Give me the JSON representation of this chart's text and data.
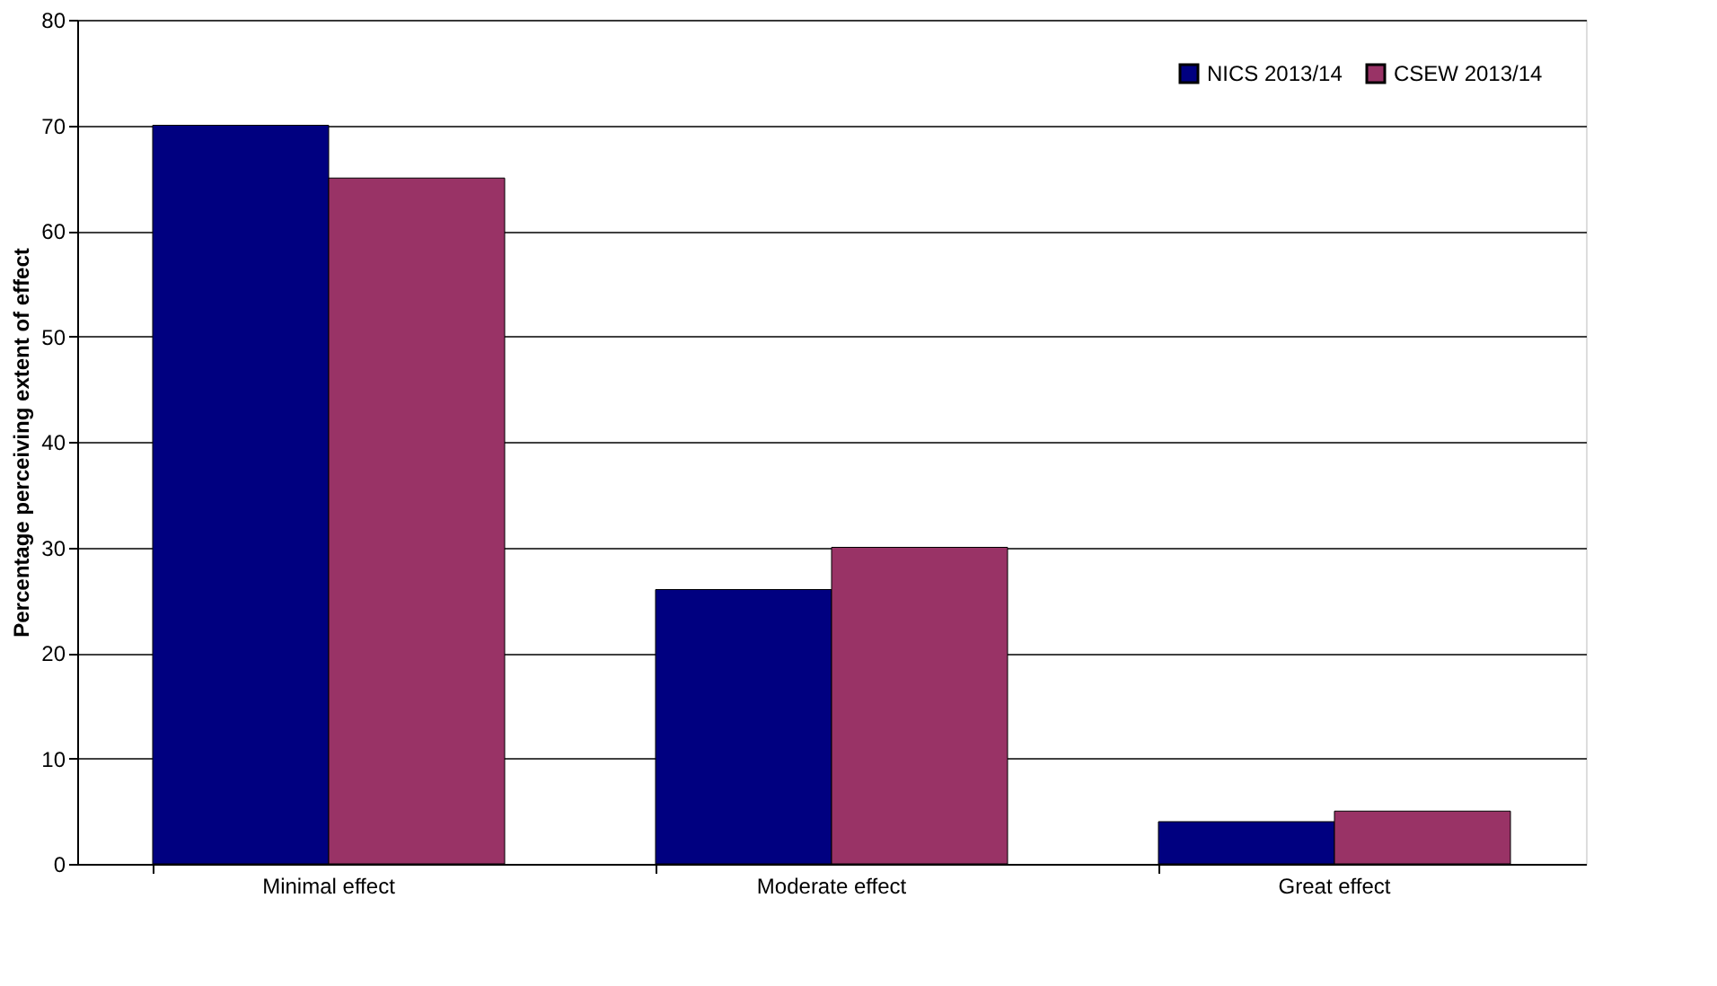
{
  "chart_data": {
    "type": "bar",
    "ylabel": "Percentage perceiving extent of effect",
    "categories": [
      "Minimal effect",
      "Moderate effect",
      "Great effect"
    ],
    "series": [
      {
        "name": "NICS 2013/14",
        "color": "#000080",
        "values": [
          70,
          26,
          4
        ]
      },
      {
        "name": "CSEW 2013/14",
        "color": "#993366",
        "values": [
          65,
          30,
          5
        ]
      }
    ],
    "ylim": [
      0,
      80
    ],
    "yticks": [
      0,
      10,
      20,
      30,
      40,
      50,
      60,
      70,
      80
    ],
    "grid": "y",
    "legend": "top right"
  }
}
